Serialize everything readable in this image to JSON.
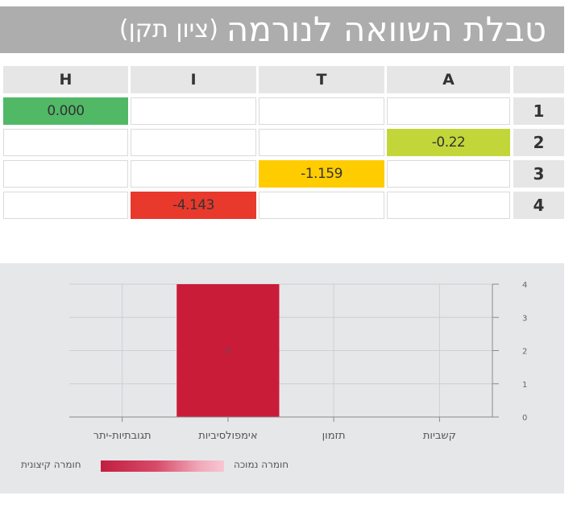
{
  "title": {
    "main": "טבלת השוואה לנורמה",
    "sub": "(ציון תקן)"
  },
  "table": {
    "columns": [
      "H",
      "I",
      "T",
      "A"
    ],
    "rows": [
      {
        "label": "1",
        "cells": [
          "0.000",
          "",
          "",
          ""
        ]
      },
      {
        "label": "2",
        "cells": [
          "",
          "",
          "",
          "-0.22"
        ]
      },
      {
        "label": "3",
        "cells": [
          "",
          "",
          "-1.159",
          ""
        ]
      },
      {
        "label": "4",
        "cells": [
          "",
          "-4.143",
          "",
          ""
        ]
      }
    ],
    "cell_colors": {
      "0.000": "#51b866",
      "-0.22": "#c3d639",
      "-1.159": "#ffcc00",
      "-4.143": "#e8392c"
    }
  },
  "chart_data": {
    "type": "bar",
    "categories": [
      "תגובתיות-יתר",
      "אימפולסיביות",
      "תזמון",
      "קשביות"
    ],
    "values": [
      0,
      4,
      0,
      0
    ],
    "data_labels": [
      "",
      "4",
      "",
      ""
    ],
    "ylim": [
      0,
      4
    ],
    "yticks": [
      "0",
      "1",
      "2",
      "3",
      "4"
    ],
    "y_axis_side": "right",
    "bar_color": "#c91c39",
    "grid": true
  },
  "legend": {
    "left_label": "חומרה קיצונית",
    "right_label": "חומרה נמוכה"
  }
}
